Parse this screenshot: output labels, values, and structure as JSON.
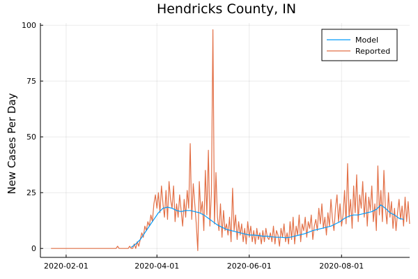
{
  "chart_data": {
    "type": "line",
    "title": "Hendricks County, IN",
    "xlabel": "",
    "ylabel": "New Cases Per Day",
    "x_axis": {
      "type": "date",
      "range": [
        "2020-01-15",
        "2020-09-15"
      ],
      "ticks": [
        "2020-02-01",
        "2020-04-01",
        "2020-06-01",
        "2020-08-01"
      ]
    },
    "ylim": [
      -4,
      101
    ],
    "yticks": [
      0,
      25,
      50,
      75,
      100
    ],
    "grid": true,
    "legend_position": "top-right",
    "series": [
      {
        "name": "Model",
        "color": "#009AFA",
        "points": [
          [
            "2020-03-15",
            0.5
          ],
          [
            "2020-03-18",
            2
          ],
          [
            "2020-03-21",
            4
          ],
          [
            "2020-03-24",
            7
          ],
          [
            "2020-03-27",
            10
          ],
          [
            "2020-03-30",
            13
          ],
          [
            "2020-04-02",
            16
          ],
          [
            "2020-04-05",
            18
          ],
          [
            "2020-04-08",
            18.5
          ],
          [
            "2020-04-11",
            18
          ],
          [
            "2020-04-14",
            17
          ],
          [
            "2020-04-17",
            16.5
          ],
          [
            "2020-04-20",
            17
          ],
          [
            "2020-04-23",
            17
          ],
          [
            "2020-04-26",
            16.5
          ],
          [
            "2020-04-29",
            16
          ],
          [
            "2020-05-02",
            15
          ],
          [
            "2020-05-05",
            13.5
          ],
          [
            "2020-05-08",
            12
          ],
          [
            "2020-05-11",
            10.5
          ],
          [
            "2020-05-14",
            9.5
          ],
          [
            "2020-05-17",
            8.5
          ],
          [
            "2020-05-20",
            8
          ],
          [
            "2020-05-23",
            7.5
          ],
          [
            "2020-05-26",
            7
          ],
          [
            "2020-05-29",
            6.5
          ],
          [
            "2020-06-01",
            6
          ],
          [
            "2020-06-04",
            6
          ],
          [
            "2020-06-07",
            5.8
          ],
          [
            "2020-06-10",
            5.5
          ],
          [
            "2020-06-13",
            5.5
          ],
          [
            "2020-06-16",
            5.2
          ],
          [
            "2020-06-19",
            5
          ],
          [
            "2020-06-22",
            5
          ],
          [
            "2020-06-25",
            4.8
          ],
          [
            "2020-06-28",
            5
          ],
          [
            "2020-07-01",
            5.5
          ],
          [
            "2020-07-04",
            6
          ],
          [
            "2020-07-07",
            6.5
          ],
          [
            "2020-07-10",
            7.2
          ],
          [
            "2020-07-13",
            8
          ],
          [
            "2020-07-16",
            8.5
          ],
          [
            "2020-07-19",
            9
          ],
          [
            "2020-07-22",
            9.5
          ],
          [
            "2020-07-25",
            10
          ],
          [
            "2020-07-28",
            11
          ],
          [
            "2020-07-31",
            12
          ],
          [
            "2020-08-03",
            13.5
          ],
          [
            "2020-08-06",
            14.5
          ],
          [
            "2020-08-09",
            15
          ],
          [
            "2020-08-12",
            15
          ],
          [
            "2020-08-15",
            15.5
          ],
          [
            "2020-08-18",
            16
          ],
          [
            "2020-08-21",
            16.5
          ],
          [
            "2020-08-24",
            17.5
          ],
          [
            "2020-08-27",
            19.5
          ],
          [
            "2020-08-30",
            18
          ],
          [
            "2020-09-02",
            16
          ],
          [
            "2020-09-05",
            15
          ],
          [
            "2020-09-08",
            13.5
          ],
          [
            "2020-09-11",
            13
          ]
        ]
      },
      {
        "name": "Reported",
        "color": "#E26F46",
        "points": [
          [
            "2020-01-22",
            0
          ],
          [
            "2020-03-05",
            0
          ],
          [
            "2020-03-06",
            1
          ],
          [
            "2020-03-07",
            0
          ],
          [
            "2020-03-13",
            0
          ],
          [
            "2020-03-14",
            1
          ],
          [
            "2020-03-15",
            0
          ],
          [
            "2020-03-16",
            0
          ],
          [
            "2020-03-17",
            2
          ],
          [
            "2020-03-18",
            0
          ],
          [
            "2020-03-19",
            3
          ],
          [
            "2020-03-20",
            1
          ],
          [
            "2020-03-21",
            4
          ],
          [
            "2020-03-22",
            7
          ],
          [
            "2020-03-23",
            5
          ],
          [
            "2020-03-24",
            10
          ],
          [
            "2020-03-25",
            8
          ],
          [
            "2020-03-26",
            12
          ],
          [
            "2020-03-27",
            10
          ],
          [
            "2020-03-28",
            15
          ],
          [
            "2020-03-29",
            12
          ],
          [
            "2020-03-30",
            20
          ],
          [
            "2020-03-31",
            24
          ],
          [
            "2020-04-01",
            18
          ],
          [
            "2020-04-02",
            25
          ],
          [
            "2020-04-03",
            16
          ],
          [
            "2020-04-04",
            28
          ],
          [
            "2020-04-05",
            20
          ],
          [
            "2020-04-06",
            14
          ],
          [
            "2020-04-07",
            26
          ],
          [
            "2020-04-08",
            13
          ],
          [
            "2020-04-09",
            30
          ],
          [
            "2020-04-10",
            22
          ],
          [
            "2020-04-11",
            18
          ],
          [
            "2020-04-12",
            28
          ],
          [
            "2020-04-13",
            12
          ],
          [
            "2020-04-14",
            20
          ],
          [
            "2020-04-15",
            14
          ],
          [
            "2020-04-16",
            24
          ],
          [
            "2020-04-17",
            17
          ],
          [
            "2020-04-18",
            10
          ],
          [
            "2020-04-19",
            22
          ],
          [
            "2020-04-20",
            14
          ],
          [
            "2020-04-21",
            26
          ],
          [
            "2020-04-22",
            18
          ],
          [
            "2020-04-23",
            47
          ],
          [
            "2020-04-24",
            13
          ],
          [
            "2020-04-25",
            29
          ],
          [
            "2020-04-26",
            20
          ],
          [
            "2020-04-27",
            11
          ],
          [
            "2020-04-28",
            -1
          ],
          [
            "2020-04-29",
            30
          ],
          [
            "2020-04-30",
            16
          ],
          [
            "2020-05-01",
            21
          ],
          [
            "2020-05-02",
            8
          ],
          [
            "2020-05-03",
            35
          ],
          [
            "2020-05-04",
            15
          ],
          [
            "2020-05-05",
            44
          ],
          [
            "2020-05-06",
            10
          ],
          [
            "2020-05-07",
            25
          ],
          [
            "2020-05-08",
            98
          ],
          [
            "2020-05-09",
            11
          ],
          [
            "2020-05-10",
            34
          ],
          [
            "2020-05-11",
            14
          ],
          [
            "2020-05-12",
            8
          ],
          [
            "2020-05-13",
            20
          ],
          [
            "2020-05-14",
            5
          ],
          [
            "2020-05-15",
            17
          ],
          [
            "2020-05-16",
            8
          ],
          [
            "2020-05-17",
            11
          ],
          [
            "2020-05-18",
            6
          ],
          [
            "2020-05-19",
            14
          ],
          [
            "2020-05-20",
            3
          ],
          [
            "2020-05-21",
            27
          ],
          [
            "2020-05-22",
            8
          ],
          [
            "2020-05-23",
            15
          ],
          [
            "2020-05-24",
            4
          ],
          [
            "2020-05-25",
            12
          ],
          [
            "2020-05-26",
            6
          ],
          [
            "2020-05-27",
            11
          ],
          [
            "2020-05-28",
            3
          ],
          [
            "2020-05-29",
            9
          ],
          [
            "2020-05-30",
            2
          ],
          [
            "2020-05-31",
            12
          ],
          [
            "2020-06-01",
            5
          ],
          [
            "2020-06-02",
            10
          ],
          [
            "2020-06-03",
            3
          ],
          [
            "2020-06-04",
            8
          ],
          [
            "2020-06-05",
            2
          ],
          [
            "2020-06-06",
            9
          ],
          [
            "2020-06-07",
            4
          ],
          [
            "2020-06-08",
            7
          ],
          [
            "2020-06-09",
            2
          ],
          [
            "2020-06-10",
            8
          ],
          [
            "2020-06-11",
            3
          ],
          [
            "2020-06-12",
            9
          ],
          [
            "2020-06-13",
            5
          ],
          [
            "2020-06-14",
            4
          ],
          [
            "2020-06-15",
            7
          ],
          [
            "2020-06-16",
            3
          ],
          [
            "2020-06-17",
            10
          ],
          [
            "2020-06-18",
            2
          ],
          [
            "2020-06-19",
            8
          ],
          [
            "2020-06-20",
            6
          ],
          [
            "2020-06-21",
            1
          ],
          [
            "2020-06-22",
            9
          ],
          [
            "2020-06-23",
            5
          ],
          [
            "2020-06-24",
            11
          ],
          [
            "2020-06-25",
            3
          ],
          [
            "2020-06-26",
            7
          ],
          [
            "2020-06-27",
            2
          ],
          [
            "2020-06-28",
            12
          ],
          [
            "2020-06-29",
            4
          ],
          [
            "2020-06-30",
            14
          ],
          [
            "2020-07-01",
            2
          ],
          [
            "2020-07-02",
            10
          ],
          [
            "2020-07-03",
            6
          ],
          [
            "2020-07-04",
            15
          ],
          [
            "2020-07-05",
            3
          ],
          [
            "2020-07-06",
            11
          ],
          [
            "2020-07-07",
            8
          ],
          [
            "2020-07-08",
            14
          ],
          [
            "2020-07-09",
            5
          ],
          [
            "2020-07-10",
            12
          ],
          [
            "2020-07-11",
            9
          ],
          [
            "2020-07-12",
            15
          ],
          [
            "2020-07-13",
            4
          ],
          [
            "2020-07-14",
            10
          ],
          [
            "2020-07-15",
            13
          ],
          [
            "2020-07-16",
            8
          ],
          [
            "2020-07-17",
            18
          ],
          [
            "2020-07-18",
            11
          ],
          [
            "2020-07-19",
            20
          ],
          [
            "2020-07-20",
            9
          ],
          [
            "2020-07-21",
            14
          ],
          [
            "2020-07-22",
            6
          ],
          [
            "2020-07-23",
            16
          ],
          [
            "2020-07-24",
            10
          ],
          [
            "2020-07-25",
            22
          ],
          [
            "2020-07-26",
            13
          ],
          [
            "2020-07-27",
            8
          ],
          [
            "2020-07-28",
            18
          ],
          [
            "2020-07-29",
            24
          ],
          [
            "2020-07-30",
            12
          ],
          [
            "2020-07-31",
            20
          ],
          [
            "2020-08-01",
            10
          ],
          [
            "2020-08-02",
            15
          ],
          [
            "2020-08-03",
            26
          ],
          [
            "2020-08-04",
            11
          ],
          [
            "2020-08-05",
            38
          ],
          [
            "2020-08-06",
            14
          ],
          [
            "2020-08-07",
            22
          ],
          [
            "2020-08-08",
            9
          ],
          [
            "2020-08-09",
            28
          ],
          [
            "2020-08-10",
            16
          ],
          [
            "2020-08-11",
            33
          ],
          [
            "2020-08-12",
            12
          ],
          [
            "2020-08-13",
            24
          ],
          [
            "2020-08-14",
            18
          ],
          [
            "2020-08-15",
            30
          ],
          [
            "2020-08-16",
            14
          ],
          [
            "2020-08-17",
            25
          ],
          [
            "2020-08-18",
            10
          ],
          [
            "2020-08-19",
            23
          ],
          [
            "2020-08-20",
            17
          ],
          [
            "2020-08-21",
            28
          ],
          [
            "2020-08-22",
            12
          ],
          [
            "2020-08-23",
            20
          ],
          [
            "2020-08-24",
            8
          ],
          [
            "2020-08-25",
            37
          ],
          [
            "2020-08-26",
            15
          ],
          [
            "2020-08-27",
            26
          ],
          [
            "2020-08-28",
            12
          ],
          [
            "2020-08-29",
            35
          ],
          [
            "2020-08-30",
            18
          ],
          [
            "2020-08-31",
            11
          ],
          [
            "2020-09-01",
            25
          ],
          [
            "2020-09-02",
            14
          ],
          [
            "2020-09-03",
            21
          ],
          [
            "2020-09-04",
            9
          ],
          [
            "2020-09-05",
            18
          ],
          [
            "2020-09-06",
            8
          ],
          [
            "2020-09-07",
            16
          ],
          [
            "2020-09-08",
            22
          ],
          [
            "2020-09-09",
            13
          ],
          [
            "2020-09-10",
            19
          ],
          [
            "2020-09-11",
            10
          ],
          [
            "2020-09-12",
            23
          ],
          [
            "2020-09-13",
            12
          ],
          [
            "2020-09-14",
            21
          ],
          [
            "2020-09-15",
            11
          ]
        ]
      }
    ]
  }
}
